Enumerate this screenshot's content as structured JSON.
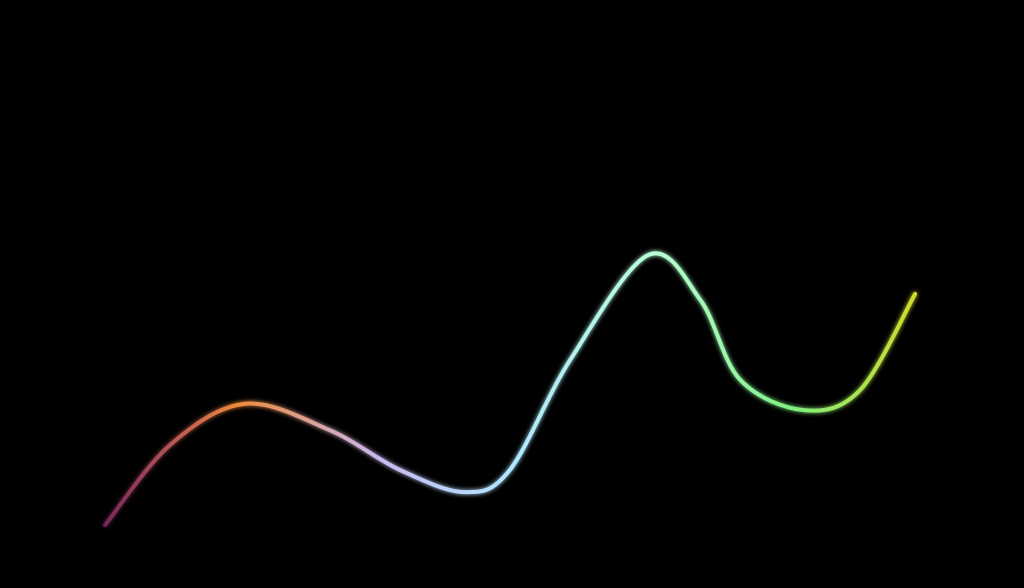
{
  "chart_data": {
    "type": "line",
    "title": "",
    "xlabel": "",
    "ylabel": "",
    "xlim": [
      0,
      100
    ],
    "ylim": [
      0,
      100
    ],
    "grid": false,
    "legend": "none",
    "series": [
      {
        "x": [
          0.5,
          8.3,
          17.4,
          27.6,
          36.1,
          43.9,
          49.3,
          56.6,
          66.0,
          72.3,
          77.1,
          84.9,
          91.6,
          98.2
        ],
        "y": [
          1.8,
          17.8,
          26.1,
          20.8,
          12.8,
          8.4,
          12.8,
          34.9,
          55.9,
          46.9,
          30.9,
          24.8,
          28.9,
          48.1
        ]
      }
    ],
    "colors": {
      "background": "#000000",
      "line_gradient": [
        "#b03a8a",
        "#f08a3a",
        "#c8b8f0",
        "#b0e8ff",
        "#b8ffd8",
        "#80f080",
        "#d8d820"
      ],
      "x_axis_gradient": [
        "#ffb0ff",
        "#fff0e0",
        "#b0f0ff",
        "#40e040",
        "#c0b020"
      ],
      "y_axis_gradient": [
        "#ff80ff",
        "#e020e0"
      ]
    }
  }
}
